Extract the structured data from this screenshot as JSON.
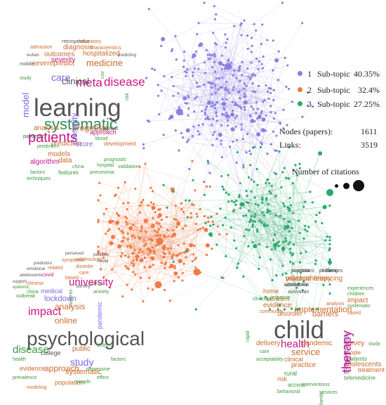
{
  "legend": {
    "items": [
      {
        "num": "1",
        "label": "Sub-topic",
        "pct": "40.35%",
        "color": "#8b7fe0"
      },
      {
        "num": "2",
        "label": "Sub-topic",
        "pct": "32.4%",
        "color": "#ef7a45"
      },
      {
        "num": "3",
        "label": "Sub-topic",
        "pct": "27.25%",
        "color": "#2ca870"
      }
    ]
  },
  "stats": {
    "nodes_label": "Nodes (papers):",
    "nodes_value": "1611",
    "links_label": "Links:",
    "links_value": "3519"
  },
  "citations": {
    "title": "Number of citations"
  },
  "clouds": {
    "topic1": [
      "retrospective",
      "laboratory",
      "admission",
      "diagnosis",
      "characteristics",
      "outcomes",
      "hospitalized",
      "wuhan",
      "severity",
      "cov",
      "medicine",
      "predicting",
      "severepredict",
      "mobile",
      "care",
      "meta",
      "disease",
      "clinical",
      "risk",
      "study",
      "model",
      "learning",
      "systematic",
      "prognosis",
      "analysis",
      "patients",
      "mortality",
      "approach",
      "based",
      "pandemic",
      "prediction",
      "blood",
      "predictors",
      "score",
      "development",
      "models",
      "algorithm",
      "data",
      "china",
      "hospital",
      "features",
      "pneumonia",
      "factors",
      "validation",
      "prognostic",
      "techniques"
    ],
    "topic2": [
      "perceived",
      "pediatric",
      "symptoms",
      "predictors",
      "adolescents",
      "model",
      "related",
      "disorder",
      "covid",
      "emotional",
      "care",
      "adolescents",
      "survey",
      "based",
      "chinese",
      "support",
      "stress",
      "students",
      "medical",
      "university",
      "epidemic",
      "china",
      "outbreak",
      "lockdown",
      "anxiety",
      "impact",
      "analysis",
      "online",
      "pandemic",
      "psychological",
      "disease",
      "public",
      "college",
      "study",
      "distress",
      "health",
      "evidence",
      "approach",
      "factors",
      "systematic",
      "depressive",
      "prevalence",
      "modeling",
      "population",
      "people",
      "effect"
    ],
    "topic3": [
      "psychiatric",
      "pediatric",
      "videoconferencing",
      "adolescent",
      "australian",
      "home",
      "experiences",
      "providers",
      "children",
      "impact",
      "response",
      "clinicians",
      "evidence",
      "implementation",
      "analysis",
      "systematic",
      "community",
      "disorder",
      "barriers",
      "rapid",
      "based",
      "child",
      "delivery",
      "health",
      "pandemic",
      "survey",
      "study",
      "care",
      "service",
      "people",
      "acceptability",
      "telepsychiatry",
      "clinical",
      "patients",
      "adolescents",
      "practice",
      "treatment",
      "rural",
      "risk",
      "telemedicine",
      "therapy",
      "interventions",
      "family",
      "access",
      "behavioral",
      "services",
      "australia",
      "challenges",
      "psychotherapy",
      "satisfaction"
    ]
  }
}
